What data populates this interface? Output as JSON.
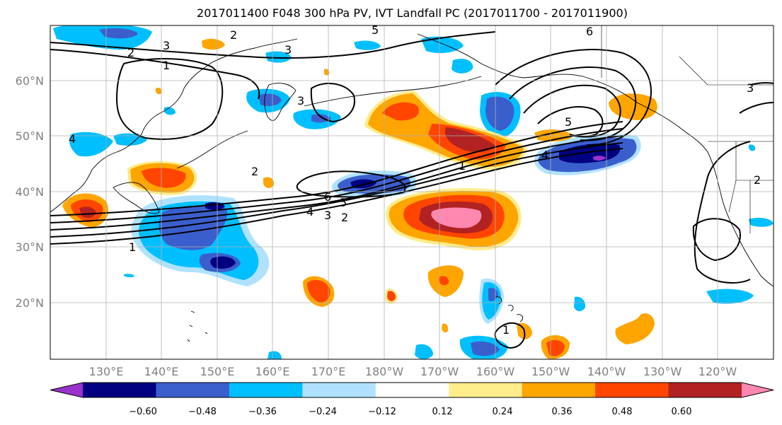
{
  "title": "2017011400 F048 300 hPa PV, IVT Landfall PC (2017011700 - 2017011900)",
  "map": {
    "latitude_labels": [
      "60°N",
      "50°N",
      "40°N",
      "30°N",
      "20°N"
    ],
    "longitude_labels": [
      "130°E",
      "140°E",
      "150°E",
      "160°E",
      "170°E",
      "180°W",
      "170°W",
      "160°W",
      "150°W",
      "140°W",
      "130°W",
      "120°W"
    ],
    "contour_labels": [
      "2",
      "3",
      "1",
      "2",
      "3",
      "5",
      "6",
      "3",
      "4",
      "2",
      "6",
      "5",
      "4",
      "3",
      "2",
      "1",
      "1",
      "5",
      "4",
      "3",
      "2",
      "1"
    ]
  },
  "colorbar": {
    "tick_labels": [
      "−0.60",
      "−0.48",
      "−0.36",
      "−0.24",
      "−0.12",
      "0.12",
      "0.24",
      "0.36",
      "0.48",
      "0.60"
    ],
    "colors": [
      "#9932cc",
      "#000080",
      "#3a5fcd",
      "#00bfff",
      "#b0e2ff",
      "#ffffff",
      "#ffec8b",
      "#ffa500",
      "#ff4500",
      "#b22222",
      "#ff88b0"
    ]
  }
}
